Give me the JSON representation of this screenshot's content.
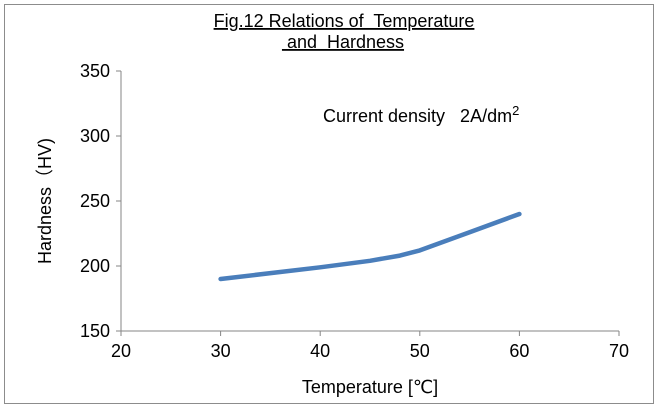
{
  "chart_data": {
    "type": "line",
    "title_lines": [
      "Fig.12 Relations of  Temperature",
      " and  Hardness"
    ],
    "xlabel": "Temperature [℃]",
    "ylabel": "Hardness（HV)",
    "xlim": [
      20,
      70
    ],
    "ylim": [
      150,
      350
    ],
    "xticks": [
      20,
      30,
      40,
      50,
      60,
      70
    ],
    "yticks": [
      150,
      200,
      250,
      300,
      350
    ],
    "grid": false,
    "annotation": {
      "text": "Current density   2A/dm",
      "superscript": "2"
    },
    "series": [
      {
        "color": "#4a7ebb",
        "x": [
          30,
          40,
          45,
          48,
          50,
          55,
          60
        ],
        "y": [
          190,
          199,
          204,
          208,
          212,
          226,
          240
        ]
      }
    ]
  }
}
